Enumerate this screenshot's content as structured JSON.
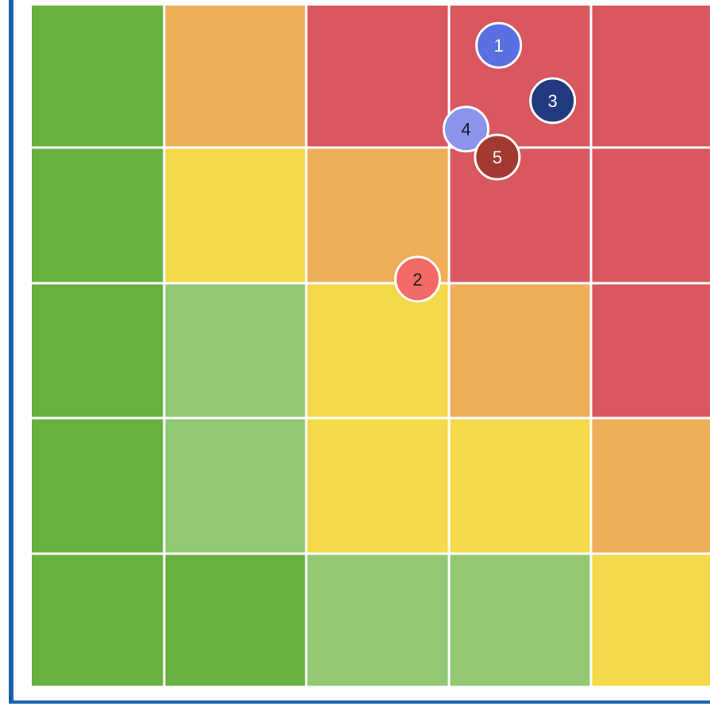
{
  "chart_data": {
    "type": "heatmap",
    "title": "",
    "xlabel": "",
    "ylabel": "",
    "grid_size": [
      5,
      5
    ],
    "rows_top_to_bottom": [
      [
        "green",
        "orange",
        "red",
        "red",
        "red"
      ],
      [
        "green",
        "yellow",
        "orange",
        "red",
        "red"
      ],
      [
        "green",
        "light-green",
        "yellow",
        "orange",
        "red"
      ],
      [
        "green",
        "light-green",
        "yellow",
        "yellow",
        "orange"
      ],
      [
        "green",
        "green",
        "light-green",
        "light-green",
        "yellow"
      ]
    ],
    "colors": {
      "green": "#68b040",
      "light-green": "#90c873",
      "yellow": "#f4d94a",
      "orange": "#eeae58",
      "red": "#d9575f",
      "grid_line": "#eef2ee"
    },
    "markers": [
      {
        "label": "1",
        "x": 3.35,
        "y": 4.72,
        "fill": "#5a6fe0",
        "text_color": "#ffffff"
      },
      {
        "label": "2",
        "x": 2.78,
        "y": 3.03,
        "fill": "#f26a65",
        "text_color": "#1a1a1a"
      },
      {
        "label": "3",
        "x": 3.73,
        "y": 4.33,
        "fill": "#243a80",
        "text_color": "#ffffff"
      },
      {
        "label": "4",
        "x": 3.12,
        "y": 4.13,
        "fill": "#8b93ec",
        "text_color": "#1a1a1a"
      },
      {
        "label": "5",
        "x": 3.34,
        "y": 3.93,
        "fill": "#a33a32",
        "text_color": "#ffffff"
      }
    ]
  }
}
